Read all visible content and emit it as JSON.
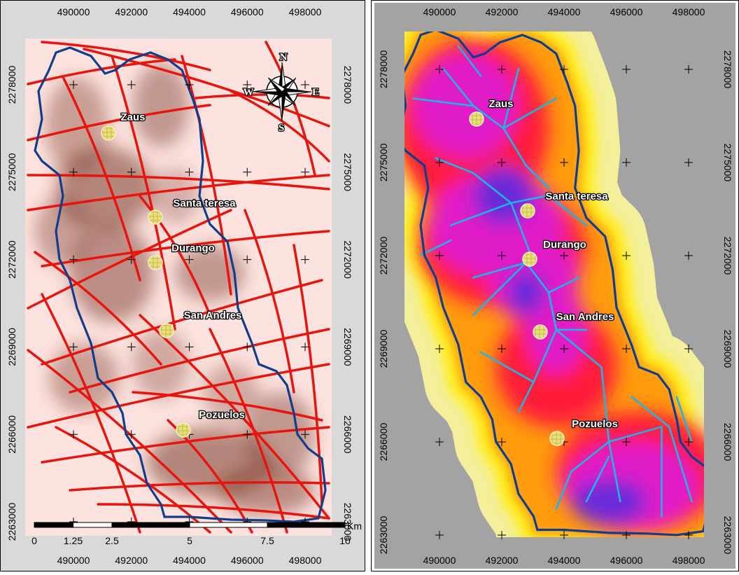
{
  "left_map": {
    "x_ticks": [
      490000,
      492000,
      494000,
      496000,
      498000
    ],
    "y_ticks": [
      2278000,
      2275000,
      2272000,
      2269000,
      2266000,
      2263000
    ],
    "places": [
      "Zaus",
      "Santa teresa",
      "Durango",
      "San Andres",
      "Pozuelos"
    ],
    "scale_bar": {
      "ticks": [
        0,
        1.25,
        2.5,
        5,
        7.5,
        10
      ],
      "unit": "Km"
    },
    "compass": {
      "north": "N",
      "south": "S",
      "east": "E",
      "west": "W"
    }
  },
  "right_map": {
    "x_ticks": [
      490000,
      492000,
      494000,
      496000,
      498000
    ],
    "y_ticks": [
      2278000,
      2275000,
      2272000,
      2269000,
      2266000,
      2263000
    ],
    "places": [
      "Zaus",
      "Santa teresa",
      "Durango",
      "San Andres",
      "Pozuelos"
    ]
  }
}
